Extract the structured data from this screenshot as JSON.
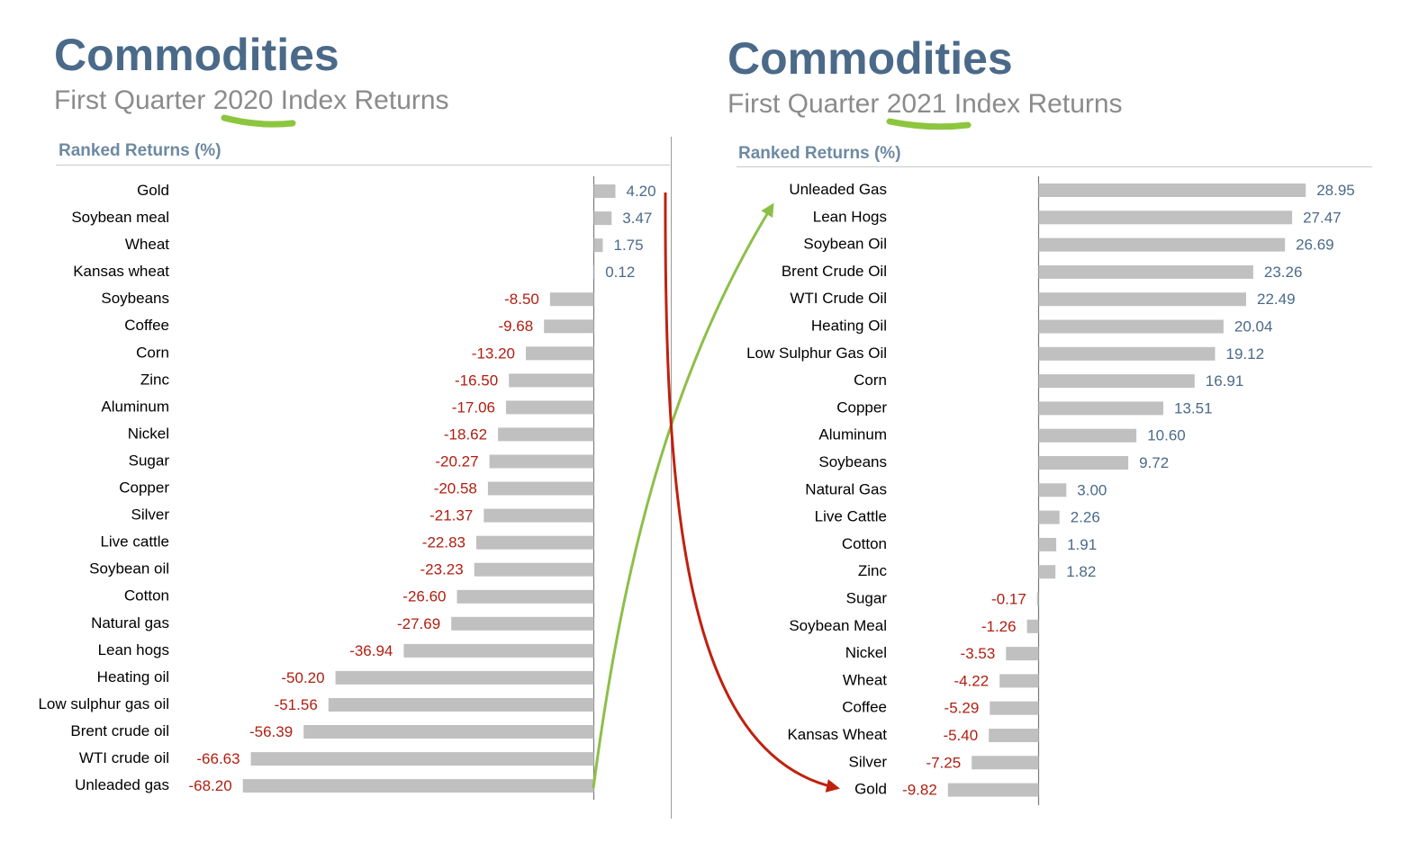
{
  "left_panel": {
    "title": "Commodities",
    "subtitle_pre": "First Quarter ",
    "subtitle_year": "2020",
    "subtitle_post": " Index Returns",
    "section_label": "Ranked Returns (%)"
  },
  "right_panel": {
    "title": "Commodities",
    "subtitle_pre": "First Quarter ",
    "subtitle_year": "2021",
    "subtitle_post": " Index Returns",
    "section_label": "Ranked Returns (%)"
  },
  "colors": {
    "bar": "#c0c0c0",
    "positive_label": "#4b6a89",
    "negative_label": "#b01e10",
    "category_label": "#000000",
    "year_highlight": "#8cc63f",
    "arrow_up": "#8cbf48",
    "arrow_down": "#c0200e"
  },
  "annotations": {
    "green_arrow": "Unleaded gas: last in 2020 → first in 2021",
    "red_arrow": "Gold: first in 2020 → last in 2021"
  },
  "chart_data": [
    {
      "type": "bar",
      "orientation": "horizontal",
      "title": "Ranked Returns (%)",
      "categories": [
        "Gold",
        "Soybean meal",
        "Wheat",
        "Kansas wheat",
        "Soybeans",
        "Coffee",
        "Corn",
        "Zinc",
        "Aluminum",
        "Nickel",
        "Sugar",
        "Copper",
        "Silver",
        "Live cattle",
        "Soybean oil",
        "Cotton",
        "Natural gas",
        "Lean hogs",
        "Heating oil",
        "Low sulphur gas oil",
        "Brent crude oil",
        "WTI crude oil",
        "Unleaded gas"
      ],
      "values": [
        4.2,
        3.47,
        1.75,
        0.12,
        -8.5,
        -9.68,
        -13.2,
        -16.5,
        -17.06,
        -18.62,
        -20.27,
        -20.58,
        -21.37,
        -22.83,
        -23.23,
        -26.6,
        -27.69,
        -36.94,
        -50.2,
        -51.56,
        -56.39,
        -66.63,
        -68.2
      ],
      "value_labels": [
        "4.20",
        "3.47",
        "1.75",
        "0.12",
        "-8.50",
        "-9.68",
        "-13.20",
        "-16.50",
        "-17.06",
        "-18.62",
        "-20.27",
        "-20.58",
        "-21.37",
        "-22.83",
        "-23.23",
        "-26.60",
        "-27.69",
        "-36.94",
        "-50.20",
        "-51.56",
        "-56.39",
        "-66.63",
        "-68.20"
      ],
      "grid": false,
      "legend": "none"
    },
    {
      "type": "bar",
      "orientation": "horizontal",
      "title": "Ranked Returns (%)",
      "categories": [
        "Unleaded Gas",
        "Lean Hogs",
        "Soybean Oil",
        "Brent Crude Oil",
        "WTI Crude Oil",
        "Heating Oil",
        "Low Sulphur Gas Oil",
        "Corn",
        "Copper",
        "Aluminum",
        "Soybeans",
        "Natural Gas",
        "Live Cattle",
        "Cotton",
        "Zinc",
        "Sugar",
        "Soybean Meal",
        "Nickel",
        "Wheat",
        "Coffee",
        "Kansas Wheat",
        "Silver",
        "Gold"
      ],
      "values": [
        28.95,
        27.47,
        26.69,
        23.26,
        22.49,
        20.04,
        19.12,
        16.91,
        13.51,
        10.6,
        9.72,
        3.0,
        2.26,
        1.91,
        1.82,
        -0.17,
        -1.26,
        -3.53,
        -4.22,
        -5.29,
        -5.4,
        -7.25,
        -9.82
      ],
      "value_labels": [
        "28.95",
        "27.47",
        "26.69",
        "23.26",
        "22.49",
        "20.04",
        "19.12",
        "16.91",
        "13.51",
        "10.60",
        "9.72",
        "3.00",
        "2.26",
        "1.91",
        "1.82",
        "-0.17",
        "-1.26",
        "-3.53",
        "-4.22",
        "-5.29",
        "-5.40",
        "-7.25",
        "-9.82"
      ],
      "grid": false,
      "legend": "none"
    }
  ]
}
